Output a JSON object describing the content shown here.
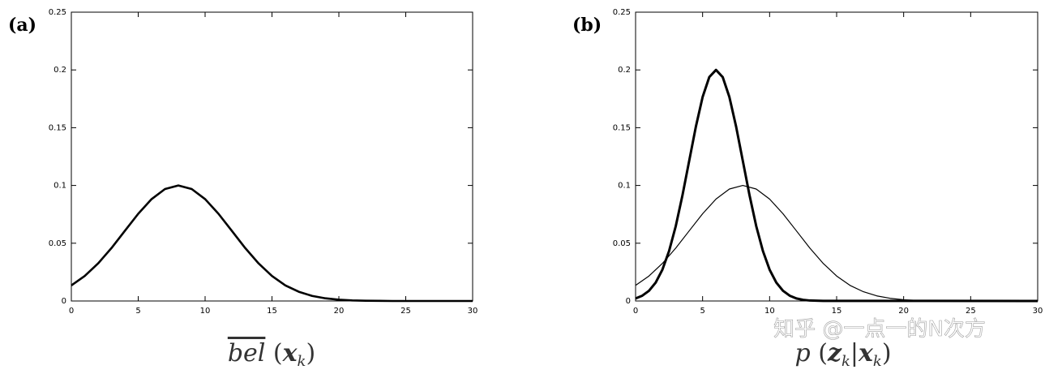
{
  "chart_data": [
    {
      "type": "line",
      "panel_label": "(a)",
      "xlabel_parts": [
        "bel",
        "(",
        "x",
        "k",
        ")"
      ],
      "xlim": [
        0,
        30
      ],
      "ylim": [
        0,
        0.25
      ],
      "xticks": [
        0,
        5,
        10,
        15,
        20,
        25,
        30
      ],
      "yticks": [
        0,
        0.05,
        0.1,
        0.15,
        0.2,
        0.25
      ],
      "series": [
        {
          "color": "#000000",
          "linewidth": 2.6,
          "x": [
            0,
            1,
            2,
            3,
            4,
            5,
            6,
            7,
            8,
            9,
            10,
            11,
            12,
            13,
            14,
            15,
            16,
            17,
            18,
            19,
            20,
            21,
            22,
            23,
            24,
            25,
            26,
            27,
            28,
            29,
            30
          ],
          "values": [
            0.0135,
            0.0216,
            0.0325,
            0.0458,
            0.0607,
            0.0755,
            0.0882,
            0.0969,
            0.1,
            0.0969,
            0.0882,
            0.0755,
            0.0607,
            0.0458,
            0.0325,
            0.0216,
            0.0135,
            0.008,
            0.0044,
            0.0023,
            0.0011,
            0.0005,
            0.0002,
            0.0001,
            0,
            0,
            0,
            0,
            0,
            0,
            0
          ]
        }
      ]
    },
    {
      "type": "line",
      "panel_label": "(b)",
      "xlabel_parts": [
        "p",
        "(",
        "z",
        "k",
        "|",
        "x",
        "k",
        ")"
      ],
      "xlim": [
        0,
        30
      ],
      "ylim": [
        0,
        0.25
      ],
      "xticks": [
        0,
        5,
        10,
        15,
        20,
        25,
        30
      ],
      "yticks": [
        0,
        0.05,
        0.1,
        0.15,
        0.2,
        0.25
      ],
      "series": [
        {
          "color": "#000000",
          "linewidth": 3,
          "x": [
            0,
            0.5,
            1,
            1.5,
            2,
            2.5,
            3,
            3.5,
            4,
            4.5,
            5,
            5.5,
            6,
            6.5,
            7,
            7.5,
            8,
            8.5,
            9,
            9.5,
            10,
            10.5,
            11,
            11.5,
            12,
            12.5,
            13,
            14,
            30
          ],
          "values": [
            0.0022,
            0.0046,
            0.0088,
            0.0159,
            0.0271,
            0.0433,
            0.0649,
            0.0916,
            0.1213,
            0.151,
            0.1765,
            0.1938,
            0.2,
            0.1938,
            0.1765,
            0.151,
            0.1213,
            0.0916,
            0.0649,
            0.0433,
            0.0271,
            0.0159,
            0.0088,
            0.0046,
            0.0022,
            0.001,
            0.0004,
            0.0001,
            0
          ]
        },
        {
          "color": "#000000",
          "linewidth": 1.2,
          "x": [
            0,
            1,
            2,
            3,
            4,
            5,
            6,
            7,
            8,
            9,
            10,
            11,
            12,
            13,
            14,
            15,
            16,
            17,
            18,
            19,
            20,
            21,
            22,
            23,
            24,
            25,
            26,
            27,
            28,
            29,
            30
          ],
          "values": [
            0.0135,
            0.0216,
            0.0325,
            0.0458,
            0.0607,
            0.0755,
            0.0882,
            0.0969,
            0.1,
            0.0969,
            0.0882,
            0.0755,
            0.0607,
            0.0458,
            0.0325,
            0.0216,
            0.0135,
            0.008,
            0.0044,
            0.0023,
            0.0011,
            0.0005,
            0.0002,
            0.0001,
            0,
            0,
            0,
            0,
            0,
            0,
            0
          ]
        }
      ]
    }
  ],
  "watermark": "知乎 @一点一的N次方"
}
